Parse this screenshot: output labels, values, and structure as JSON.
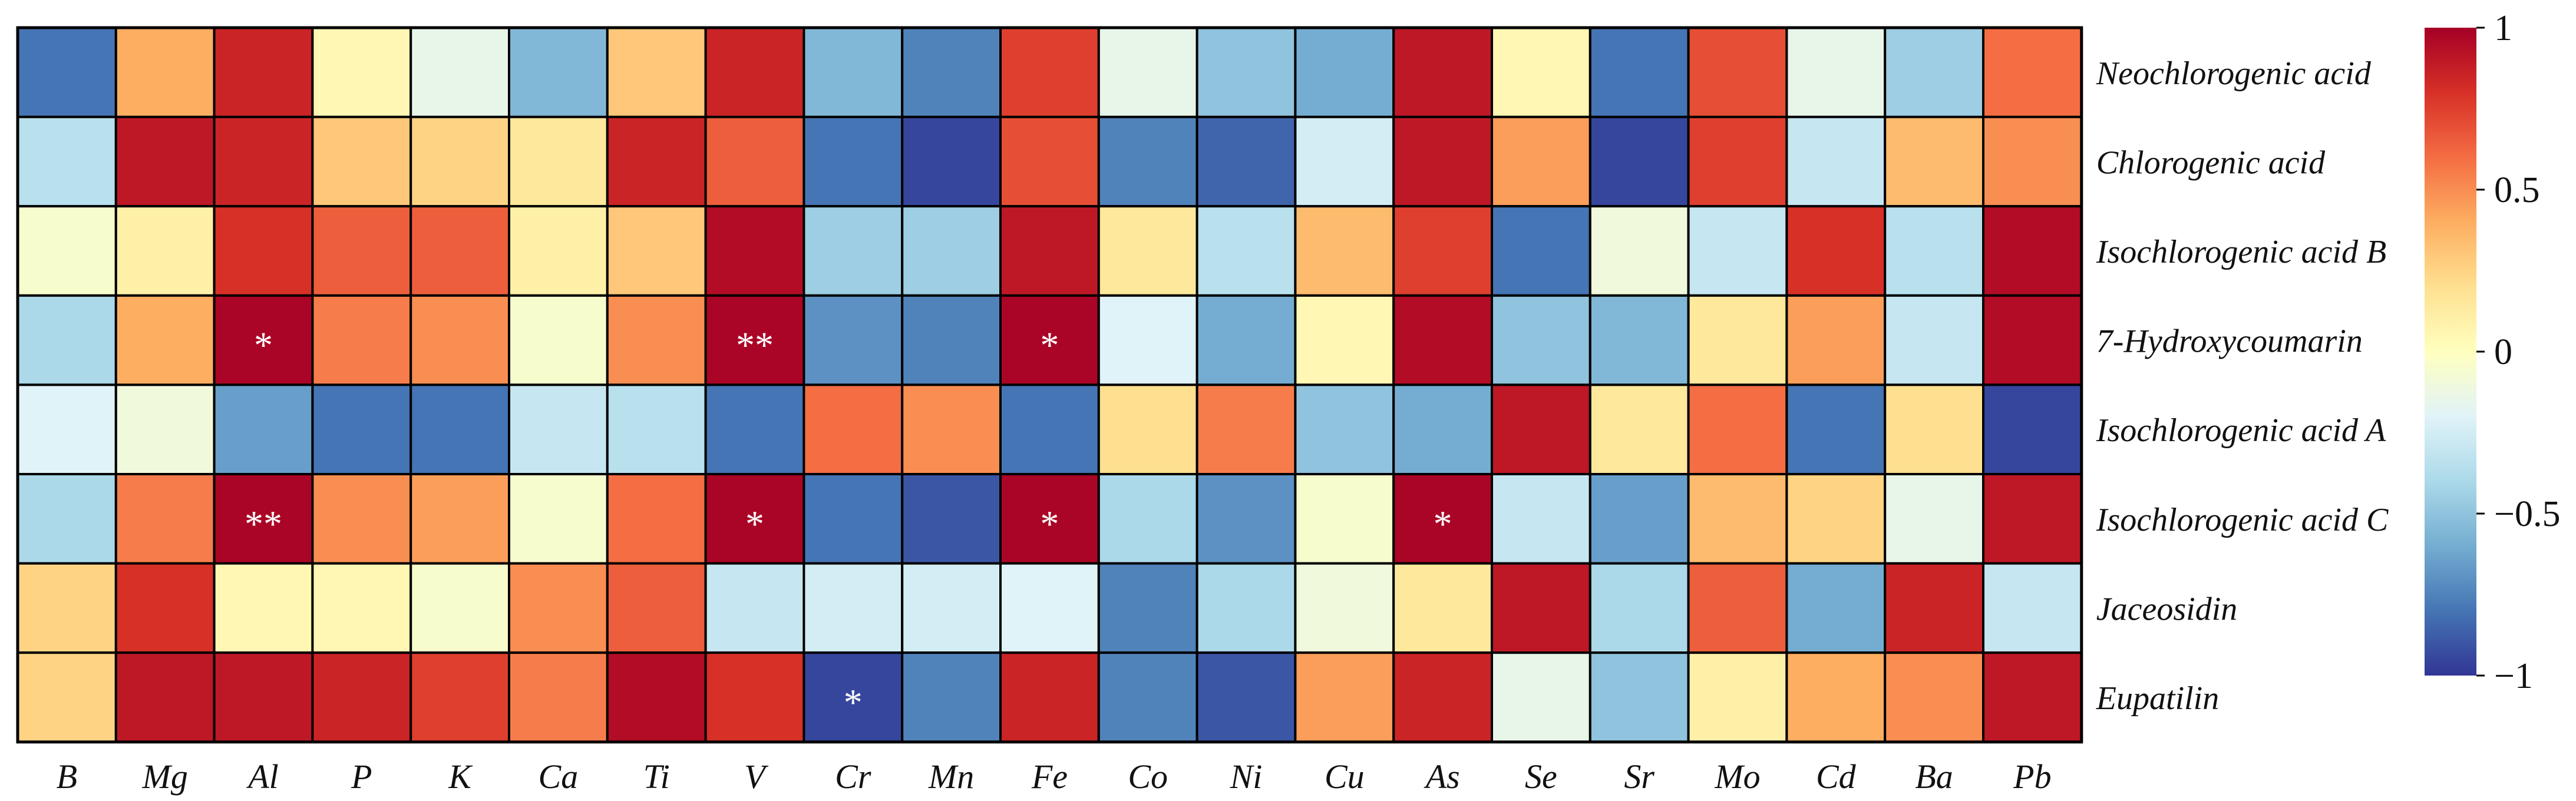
{
  "chart_data": {
    "type": "heatmap",
    "title": "",
    "xlabel": "",
    "ylabel": "",
    "columns": [
      "B",
      "Mg",
      "Al",
      "P",
      "K",
      "Ca",
      "Ti",
      "V",
      "Cr",
      "Mn",
      "Fe",
      "Co",
      "Ni",
      "Cu",
      "As",
      "Se",
      "Sr",
      "Mo",
      "Cd",
      "Ba",
      "Pb"
    ],
    "rows": [
      "Neochlorogenic acid",
      "Chlorogenic acid",
      "Isochlorogenic acid B",
      "7-Hydroxycoumarin",
      "Isochlorogenic acid A",
      "Isochlorogenic acid C",
      "Jaceosidin",
      "Eupatilin"
    ],
    "values": [
      [
        -0.8,
        0.4,
        0.85,
        0.05,
        -0.15,
        -0.55,
        0.3,
        0.85,
        -0.55,
        -0.75,
        0.75,
        -0.15,
        -0.5,
        -0.6,
        0.9,
        0.05,
        -0.8,
        0.7,
        -0.15,
        -0.45,
        0.6
      ],
      [
        -0.35,
        0.9,
        0.85,
        0.3,
        0.25,
        0.15,
        0.85,
        0.65,
        -0.8,
        -0.95,
        0.7,
        -0.75,
        -0.85,
        -0.25,
        0.9,
        0.45,
        -0.95,
        0.75,
        -0.3,
        0.35,
        0.5
      ],
      [
        -0.05,
        0.1,
        0.8,
        0.65,
        0.65,
        0.1,
        0.3,
        0.95,
        -0.45,
        -0.45,
        0.9,
        0.15,
        -0.35,
        0.35,
        0.75,
        -0.8,
        -0.1,
        -0.3,
        0.8,
        -0.35,
        0.95
      ],
      [
        -0.4,
        0.4,
        0.98,
        0.55,
        0.5,
        -0.05,
        0.5,
        0.98,
        -0.7,
        -0.75,
        0.98,
        -0.2,
        -0.6,
        0.05,
        0.95,
        -0.5,
        -0.55,
        0.15,
        0.45,
        -0.3,
        0.95
      ],
      [
        -0.2,
        -0.1,
        -0.65,
        -0.8,
        -0.8,
        -0.3,
        -0.35,
        -0.8,
        0.6,
        0.5,
        -0.8,
        0.2,
        0.55,
        -0.5,
        -0.6,
        0.9,
        0.15,
        0.6,
        -0.8,
        0.2,
        -0.95
      ],
      [
        -0.4,
        0.55,
        0.98,
        0.5,
        0.45,
        -0.05,
        0.6,
        0.98,
        -0.8,
        -0.9,
        0.98,
        -0.4,
        -0.7,
        -0.05,
        0.98,
        -0.3,
        -0.65,
        0.35,
        0.25,
        -0.15,
        0.9
      ],
      [
        0.25,
        0.8,
        0.05,
        0.05,
        -0.05,
        0.5,
        0.65,
        -0.3,
        -0.25,
        -0.25,
        -0.2,
        -0.75,
        -0.4,
        -0.1,
        0.15,
        0.9,
        -0.4,
        0.65,
        -0.6,
        0.85,
        -0.3
      ],
      [
        0.25,
        0.9,
        0.9,
        0.85,
        0.75,
        0.55,
        0.95,
        0.8,
        -0.95,
        -0.75,
        0.85,
        -0.75,
        -0.9,
        0.45,
        0.85,
        -0.15,
        -0.5,
        0.1,
        0.4,
        0.5,
        0.9
      ]
    ],
    "significance": [
      [
        "",
        "",
        "",
        "",
        "",
        "",
        "",
        "",
        "",
        "",
        "",
        "",
        "",
        "",
        "",
        "",
        "",
        "",
        "",
        "",
        ""
      ],
      [
        "",
        "",
        "",
        "",
        "",
        "",
        "",
        "",
        "",
        "",
        "",
        "",
        "",
        "",
        "",
        "",
        "",
        "",
        "",
        "",
        ""
      ],
      [
        "",
        "",
        "",
        "",
        "",
        "",
        "",
        "",
        "",
        "",
        "",
        "",
        "",
        "",
        "",
        "",
        "",
        "",
        "",
        "",
        ""
      ],
      [
        "",
        "",
        "*",
        "",
        "",
        "",
        "",
        "**",
        "",
        "",
        "*",
        "",
        "",
        "",
        "",
        "",
        "",
        "",
        "",
        "",
        ""
      ],
      [
        "",
        "",
        "",
        "",
        "",
        "",
        "",
        "",
        "",
        "",
        "",
        "",
        "",
        "",
        "",
        "",
        "",
        "",
        "",
        "",
        ""
      ],
      [
        "",
        "",
        "**",
        "",
        "",
        "",
        "",
        "*",
        "",
        "",
        "*",
        "",
        "",
        "",
        "*",
        "",
        "",
        "",
        "",
        "",
        ""
      ],
      [
        "",
        "",
        "",
        "",
        "",
        "",
        "",
        "",
        "",
        "",
        "",
        "",
        "",
        "",
        "",
        "",
        "",
        "",
        "",
        "",
        ""
      ],
      [
        "",
        "",
        "",
        "",
        "",
        "",
        "",
        "",
        "*",
        "",
        "",
        "",
        "",
        "",
        "",
        "",
        "",
        "",
        "",
        "",
        ""
      ]
    ],
    "zlim": [
      -1,
      1
    ],
    "colorbar": {
      "ticks": [
        1,
        0.5,
        0,
        -0.5,
        -1
      ],
      "tick_labels": [
        "1",
        "0.5",
        "0",
        "−0.5",
        "−1"
      ],
      "placement": "right",
      "colors": [
        "#313695",
        "#4575b4",
        "#74add1",
        "#abd9e9",
        "#e0f3f8",
        "#ffffbf",
        "#fee090",
        "#fdae61",
        "#f46d43",
        "#d73027",
        "#a50026"
      ]
    },
    "legend": "none",
    "grid": true
  }
}
